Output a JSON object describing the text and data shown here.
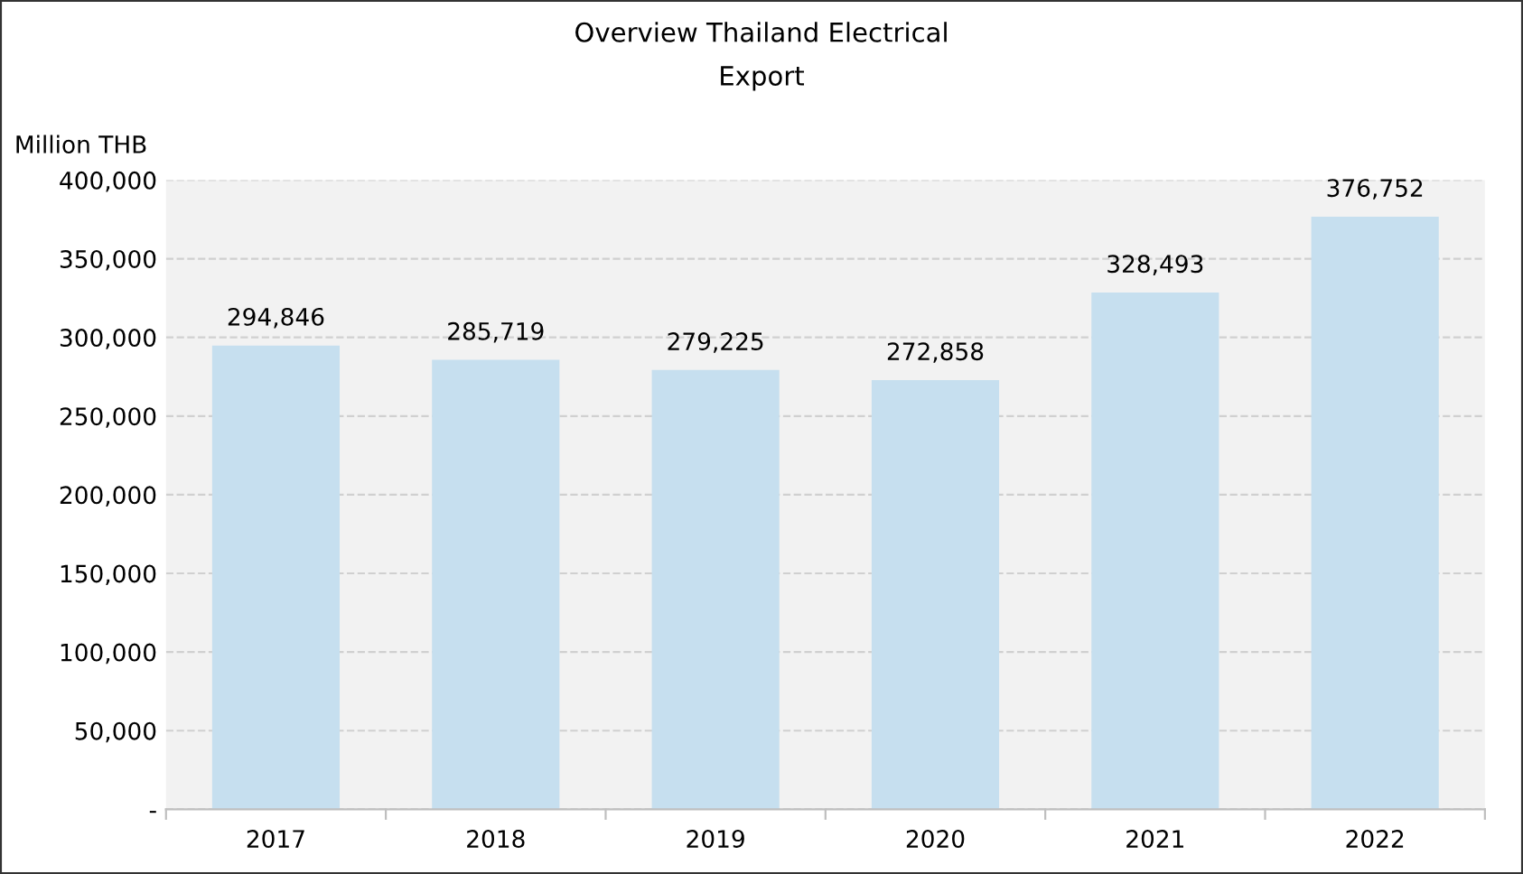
{
  "chart_data": {
    "type": "bar",
    "title": "Overview Thailand Electrical\nExport",
    "ylabel": "Million THB",
    "categories": [
      "2017",
      "2018",
      "2019",
      "2020",
      "2021",
      "2022"
    ],
    "values": [
      294846,
      285719,
      279225,
      272858,
      328493,
      376752
    ],
    "value_labels": [
      "294,846",
      "285,719",
      "279,225",
      "272,858",
      "328,493",
      "376,752"
    ],
    "color": "#c6dfef",
    "ylim": [
      0,
      400000
    ],
    "yticks": [
      {
        "value": 0,
        "label": "-"
      },
      {
        "value": 50000,
        "label": "50,000"
      },
      {
        "value": 100000,
        "label": "100,000"
      },
      {
        "value": 150000,
        "label": "150,000"
      },
      {
        "value": 200000,
        "label": "200,000"
      },
      {
        "value": 250000,
        "label": "250,000"
      },
      {
        "value": 300000,
        "label": "300,000"
      },
      {
        "value": 350000,
        "label": "350,000"
      },
      {
        "value": 400000,
        "label": "400,000"
      }
    ],
    "grid": "y",
    "legend": false
  }
}
